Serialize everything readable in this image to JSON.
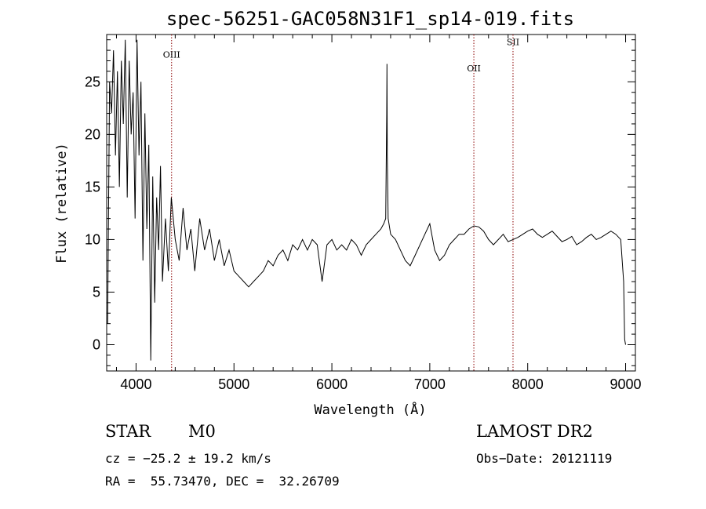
{
  "chart_data": {
    "type": "line",
    "title": "spec-56251-GAC058N31F1_sp14-019.fits",
    "xlabel": "Wavelength (Å)",
    "ylabel": "Flux (relative)",
    "xlim": [
      3700,
      9100
    ],
    "ylim": [
      -2.5,
      29.5
    ],
    "x_ticks": [
      4000,
      5000,
      6000,
      7000,
      8000,
      9000
    ],
    "y_ticks": [
      0,
      5,
      10,
      15,
      20,
      25
    ],
    "grid": false,
    "line_color": "#000000",
    "marker_color": "#8b0000",
    "emission_lines": [
      {
        "label": "OIII",
        "wavelength": 4363,
        "label_flux": 27.3
      },
      {
        "label": "OII",
        "wavelength": 7450,
        "label_flux": 26.0
      },
      {
        "label": "SII",
        "wavelength": 7850,
        "label_flux": 28.5
      }
    ],
    "series": [
      {
        "x": [
          3710,
          3730,
          3750,
          3770,
          3790,
          3810,
          3830,
          3850,
          3870,
          3890,
          3910,
          3930,
          3950,
          3970,
          3990,
          4010,
          4030,
          4050,
          4070,
          4090,
          4110,
          4130,
          4150,
          4170,
          4190,
          4210,
          4230,
          4250,
          4270,
          4300,
          4330,
          4360,
          4400,
          4440,
          4480,
          4520,
          4560,
          4600,
          4650,
          4700,
          4750,
          4800,
          4850,
          4900,
          4950,
          5000,
          5050,
          5100,
          5150,
          5200,
          5250,
          5300,
          5350,
          5400,
          5450,
          5500,
          5550,
          5600,
          5650,
          5700,
          5750,
          5800,
          5850,
          5900,
          5950,
          6000,
          6050,
          6100,
          6150,
          6200,
          6250,
          6300,
          6350,
          6400,
          6450,
          6500,
          6530,
          6550,
          6560,
          6563,
          6566,
          6575,
          6600,
          6650,
          6700,
          6750,
          6800,
          6850,
          6900,
          6950,
          7000,
          7050,
          7100,
          7150,
          7200,
          7250,
          7300,
          7350,
          7400,
          7450,
          7500,
          7550,
          7600,
          7650,
          7700,
          7750,
          7800,
          7850,
          7900,
          7950,
          8000,
          8050,
          8100,
          8150,
          8200,
          8250,
          8300,
          8350,
          8400,
          8450,
          8500,
          8550,
          8600,
          8650,
          8700,
          8750,
          8800,
          8850,
          8900,
          8950,
          8980,
          8990,
          9000
        ],
        "y": [
          2,
          25,
          22,
          28,
          18,
          26,
          15,
          27,
          21,
          29,
          14,
          27,
          20,
          24,
          12,
          29,
          18,
          25,
          8,
          22,
          11,
          19,
          -1.5,
          16,
          4,
          14,
          9,
          17,
          6,
          12,
          7,
          14,
          10,
          8,
          13,
          9,
          11,
          7,
          12,
          9,
          11,
          8,
          10,
          7.5,
          9,
          7,
          6.5,
          6,
          5.5,
          6,
          6.5,
          7,
          8,
          7.5,
          8.5,
          9,
          8,
          9.5,
          9,
          10,
          9,
          10,
          9.5,
          6,
          9.5,
          10,
          9,
          9.5,
          9,
          10,
          9.5,
          8.5,
          9.5,
          10,
          10.5,
          11,
          11.5,
          12,
          22,
          26.7,
          18,
          12,
          10.5,
          10,
          9,
          8,
          7.5,
          8.5,
          9.5,
          10.5,
          11.5,
          9,
          8,
          8.5,
          9.5,
          10,
          10.5,
          10.5,
          11,
          11.3,
          11.2,
          10.8,
          10,
          9.5,
          10,
          10.5,
          9.8,
          10,
          10.2,
          10.5,
          10.8,
          11,
          10.5,
          10.2,
          10.5,
          10.8,
          10.3,
          9.8,
          10,
          10.3,
          9.5,
          9.8,
          10.2,
          10.5,
          10,
          10.2,
          10.5,
          10.8,
          10.5,
          10,
          6,
          0.5,
          0
        ]
      }
    ]
  },
  "info": {
    "object_class": "STAR",
    "subclass": "M0",
    "redshift_line": "cz = −25.2 ± 19.2 km/s",
    "coords_line": "RA =  55.73470, DEC =  32.26709",
    "survey": "LAMOST DR2",
    "obs_date_line": "Obs−Date: 20121119"
  }
}
